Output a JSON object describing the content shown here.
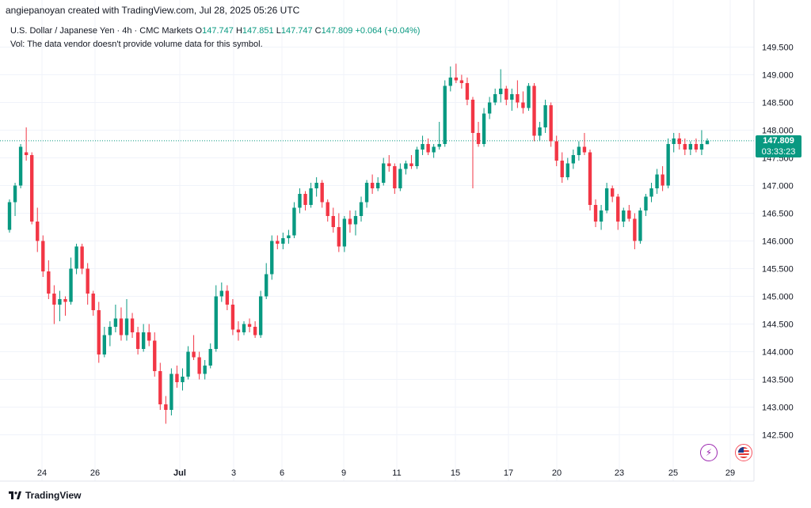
{
  "header": {
    "attribution": "angiepanoyan created with TradingView.com, Jul 28, 2025 05:26 UTC",
    "symbol_title": "U.S. Dollar / Japanese Yen · 4h · CMC Markets",
    "ohlc": {
      "open_label": "O",
      "open": "147.747",
      "high_label": "H",
      "high": "147.851",
      "low_label": "L",
      "low": "147.747",
      "close_label": "C",
      "close": "147.809",
      "change": "+0.064 (+0.04%)"
    },
    "volume_note": "Vol: The data vendor doesn't provide volume data for this symbol."
  },
  "price_tag": {
    "price": "147.809",
    "countdown": "03:33:23"
  },
  "footer": {
    "brand": "TradingView"
  },
  "events": {
    "bolt_icon": "lightning-icon",
    "flag_icon": "us-flag-icon"
  },
  "colors": {
    "up": "#089981",
    "down": "#f23645",
    "accent": "#089981"
  },
  "chart_data": {
    "type": "candlestick",
    "timeframe": "4h",
    "y_axis": {
      "ticks": [
        142.5,
        143.0,
        143.5,
        144.0,
        144.5,
        145.0,
        145.5,
        146.0,
        146.5,
        147.0,
        147.5,
        148.0,
        148.5,
        149.0,
        149.5
      ]
    },
    "x_axis": {
      "ticks": [
        "24",
        "26",
        "Jul",
        "3",
        "6",
        "9",
        "11",
        "15",
        "17",
        "20",
        "23",
        "25",
        "29"
      ]
    },
    "last_price": 147.809,
    "candles": [
      {
        "o": 146.2,
        "h": 146.75,
        "l": 146.15,
        "c": 146.7
      },
      {
        "o": 146.7,
        "h": 147.05,
        "l": 146.45,
        "c": 147.0
      },
      {
        "o": 147.0,
        "h": 147.75,
        "l": 146.95,
        "c": 147.7
      },
      {
        "o": 147.6,
        "h": 148.05,
        "l": 147.45,
        "c": 147.55
      },
      {
        "o": 147.55,
        "h": 147.6,
        "l": 146.3,
        "c": 146.35
      },
      {
        "o": 146.35,
        "h": 146.6,
        "l": 145.8,
        "c": 146.0
      },
      {
        "o": 146.0,
        "h": 146.1,
        "l": 145.35,
        "c": 145.45
      },
      {
        "o": 145.45,
        "h": 145.65,
        "l": 144.95,
        "c": 145.05
      },
      {
        "o": 145.05,
        "h": 145.2,
        "l": 144.5,
        "c": 144.85
      },
      {
        "o": 144.85,
        "h": 145.1,
        "l": 144.55,
        "c": 144.95
      },
      {
        "o": 144.95,
        "h": 145.0,
        "l": 144.65,
        "c": 144.9
      },
      {
        "o": 144.9,
        "h": 145.7,
        "l": 144.85,
        "c": 145.5
      },
      {
        "o": 145.5,
        "h": 145.95,
        "l": 145.4,
        "c": 145.9
      },
      {
        "o": 145.9,
        "h": 145.95,
        "l": 145.4,
        "c": 145.5
      },
      {
        "o": 145.5,
        "h": 145.6,
        "l": 144.85,
        "c": 145.05
      },
      {
        "o": 145.05,
        "h": 145.1,
        "l": 144.65,
        "c": 144.75
      },
      {
        "o": 144.75,
        "h": 144.9,
        "l": 143.8,
        "c": 143.95
      },
      {
        "o": 143.95,
        "h": 144.45,
        "l": 143.9,
        "c": 144.3
      },
      {
        "o": 144.3,
        "h": 144.55,
        "l": 144.1,
        "c": 144.45
      },
      {
        "o": 144.45,
        "h": 144.85,
        "l": 144.35,
        "c": 144.6
      },
      {
        "o": 144.6,
        "h": 144.8,
        "l": 144.2,
        "c": 144.3
      },
      {
        "o": 144.3,
        "h": 144.95,
        "l": 144.2,
        "c": 144.6
      },
      {
        "o": 144.6,
        "h": 144.7,
        "l": 144.25,
        "c": 144.35
      },
      {
        "o": 144.35,
        "h": 144.45,
        "l": 143.95,
        "c": 144.05
      },
      {
        "o": 144.05,
        "h": 144.5,
        "l": 144.0,
        "c": 144.35
      },
      {
        "o": 144.35,
        "h": 144.5,
        "l": 144.1,
        "c": 144.2
      },
      {
        "o": 144.2,
        "h": 144.35,
        "l": 143.55,
        "c": 143.65
      },
      {
        "o": 143.65,
        "h": 143.8,
        "l": 142.95,
        "c": 143.05
      },
      {
        "o": 143.05,
        "h": 143.2,
        "l": 142.7,
        "c": 142.95
      },
      {
        "o": 142.95,
        "h": 143.7,
        "l": 142.85,
        "c": 143.6
      },
      {
        "o": 143.6,
        "h": 143.75,
        "l": 143.35,
        "c": 143.45
      },
      {
        "o": 143.45,
        "h": 143.7,
        "l": 143.3,
        "c": 143.55
      },
      {
        "o": 143.55,
        "h": 144.1,
        "l": 143.5,
        "c": 144.0
      },
      {
        "o": 144.0,
        "h": 144.3,
        "l": 143.85,
        "c": 143.9
      },
      {
        "o": 143.9,
        "h": 144.0,
        "l": 143.5,
        "c": 143.6
      },
      {
        "o": 143.6,
        "h": 143.85,
        "l": 143.5,
        "c": 143.75
      },
      {
        "o": 143.75,
        "h": 144.15,
        "l": 143.7,
        "c": 144.05
      },
      {
        "o": 144.05,
        "h": 145.2,
        "l": 144.0,
        "c": 145.0
      },
      {
        "o": 145.0,
        "h": 145.25,
        "l": 144.9,
        "c": 145.1
      },
      {
        "o": 145.1,
        "h": 145.2,
        "l": 144.75,
        "c": 144.85
      },
      {
        "o": 144.85,
        "h": 144.95,
        "l": 144.3,
        "c": 144.4
      },
      {
        "o": 144.4,
        "h": 144.55,
        "l": 144.2,
        "c": 144.35
      },
      {
        "o": 144.35,
        "h": 144.55,
        "l": 144.3,
        "c": 144.5
      },
      {
        "o": 144.5,
        "h": 144.6,
        "l": 144.35,
        "c": 144.45
      },
      {
        "o": 144.45,
        "h": 144.55,
        "l": 144.25,
        "c": 144.3
      },
      {
        "o": 144.3,
        "h": 145.1,
        "l": 144.25,
        "c": 145.0
      },
      {
        "o": 145.0,
        "h": 145.6,
        "l": 144.95,
        "c": 145.4
      },
      {
        "o": 145.4,
        "h": 146.1,
        "l": 145.3,
        "c": 146.0
      },
      {
        "o": 146.0,
        "h": 146.1,
        "l": 145.85,
        "c": 145.95
      },
      {
        "o": 145.95,
        "h": 146.15,
        "l": 145.85,
        "c": 146.05
      },
      {
        "o": 146.05,
        "h": 146.2,
        "l": 145.95,
        "c": 146.1
      },
      {
        "o": 146.1,
        "h": 146.7,
        "l": 146.05,
        "c": 146.6
      },
      {
        "o": 146.6,
        "h": 146.95,
        "l": 146.5,
        "c": 146.85
      },
      {
        "o": 146.85,
        "h": 146.9,
        "l": 146.55,
        "c": 146.65
      },
      {
        "o": 146.65,
        "h": 147.05,
        "l": 146.6,
        "c": 146.95
      },
      {
        "o": 146.95,
        "h": 147.15,
        "l": 146.8,
        "c": 147.05
      },
      {
        "o": 147.05,
        "h": 147.1,
        "l": 146.6,
        "c": 146.7
      },
      {
        "o": 146.7,
        "h": 146.75,
        "l": 146.35,
        "c": 146.45
      },
      {
        "o": 146.45,
        "h": 146.6,
        "l": 146.15,
        "c": 146.25
      },
      {
        "o": 146.25,
        "h": 146.5,
        "l": 145.8,
        "c": 145.9
      },
      {
        "o": 145.9,
        "h": 146.45,
        "l": 145.8,
        "c": 146.4
      },
      {
        "o": 146.4,
        "h": 146.55,
        "l": 146.15,
        "c": 146.3
      },
      {
        "o": 146.3,
        "h": 146.55,
        "l": 146.1,
        "c": 146.45
      },
      {
        "o": 146.45,
        "h": 146.8,
        "l": 146.35,
        "c": 146.7
      },
      {
        "o": 146.7,
        "h": 147.1,
        "l": 146.6,
        "c": 147.05
      },
      {
        "o": 147.05,
        "h": 147.2,
        "l": 146.85,
        "c": 146.95
      },
      {
        "o": 146.95,
        "h": 147.15,
        "l": 146.9,
        "c": 147.05
      },
      {
        "o": 147.05,
        "h": 147.5,
        "l": 147.0,
        "c": 147.4
      },
      {
        "o": 147.4,
        "h": 147.55,
        "l": 147.25,
        "c": 147.35
      },
      {
        "o": 147.35,
        "h": 147.4,
        "l": 146.85,
        "c": 146.95
      },
      {
        "o": 146.95,
        "h": 147.4,
        "l": 146.9,
        "c": 147.3
      },
      {
        "o": 147.3,
        "h": 147.45,
        "l": 147.2,
        "c": 147.4
      },
      {
        "o": 147.4,
        "h": 147.55,
        "l": 147.3,
        "c": 147.35
      },
      {
        "o": 147.35,
        "h": 147.7,
        "l": 147.3,
        "c": 147.65
      },
      {
        "o": 147.65,
        "h": 147.9,
        "l": 147.55,
        "c": 147.75
      },
      {
        "o": 147.75,
        "h": 147.85,
        "l": 147.55,
        "c": 147.6
      },
      {
        "o": 147.6,
        "h": 147.75,
        "l": 147.5,
        "c": 147.7
      },
      {
        "o": 147.7,
        "h": 148.15,
        "l": 147.65,
        "c": 147.75
      },
      {
        "o": 147.75,
        "h": 148.9,
        "l": 147.7,
        "c": 148.8
      },
      {
        "o": 148.8,
        "h": 149.15,
        "l": 148.7,
        "c": 148.95
      },
      {
        "o": 148.95,
        "h": 149.2,
        "l": 148.85,
        "c": 148.9
      },
      {
        "o": 148.9,
        "h": 149.0,
        "l": 148.75,
        "c": 148.85
      },
      {
        "o": 148.85,
        "h": 148.95,
        "l": 148.45,
        "c": 148.55
      },
      {
        "o": 148.55,
        "h": 148.6,
        "l": 146.95,
        "c": 147.95
      },
      {
        "o": 147.95,
        "h": 148.15,
        "l": 147.7,
        "c": 147.75
      },
      {
        "o": 147.75,
        "h": 148.4,
        "l": 147.7,
        "c": 148.3
      },
      {
        "o": 148.3,
        "h": 148.6,
        "l": 148.2,
        "c": 148.5
      },
      {
        "o": 148.5,
        "h": 148.75,
        "l": 148.45,
        "c": 148.65
      },
      {
        "o": 148.65,
        "h": 149.1,
        "l": 148.5,
        "c": 148.75
      },
      {
        "o": 148.75,
        "h": 148.8,
        "l": 148.45,
        "c": 148.55
      },
      {
        "o": 148.55,
        "h": 148.75,
        "l": 148.35,
        "c": 148.65
      },
      {
        "o": 148.65,
        "h": 148.9,
        "l": 148.4,
        "c": 148.5
      },
      {
        "o": 148.5,
        "h": 148.7,
        "l": 148.3,
        "c": 148.4
      },
      {
        "o": 148.4,
        "h": 148.85,
        "l": 148.35,
        "c": 148.8
      },
      {
        "o": 148.8,
        "h": 148.85,
        "l": 147.8,
        "c": 147.9
      },
      {
        "o": 147.9,
        "h": 148.15,
        "l": 147.8,
        "c": 148.05
      },
      {
        "o": 148.05,
        "h": 148.55,
        "l": 147.95,
        "c": 148.45
      },
      {
        "o": 148.45,
        "h": 148.5,
        "l": 147.7,
        "c": 147.8
      },
      {
        "o": 147.8,
        "h": 147.9,
        "l": 147.35,
        "c": 147.45
      },
      {
        "o": 147.45,
        "h": 147.6,
        "l": 147.05,
        "c": 147.15
      },
      {
        "o": 147.15,
        "h": 147.5,
        "l": 147.1,
        "c": 147.4
      },
      {
        "o": 147.4,
        "h": 147.65,
        "l": 147.3,
        "c": 147.55
      },
      {
        "o": 147.55,
        "h": 147.8,
        "l": 147.45,
        "c": 147.7
      },
      {
        "o": 147.7,
        "h": 147.95,
        "l": 147.55,
        "c": 147.6
      },
      {
        "o": 147.6,
        "h": 147.65,
        "l": 146.55,
        "c": 146.65
      },
      {
        "o": 146.65,
        "h": 146.75,
        "l": 146.25,
        "c": 146.35
      },
      {
        "o": 146.35,
        "h": 146.65,
        "l": 146.2,
        "c": 146.55
      },
      {
        "o": 146.55,
        "h": 147.05,
        "l": 146.5,
        "c": 146.95
      },
      {
        "o": 146.95,
        "h": 147.0,
        "l": 146.7,
        "c": 146.8
      },
      {
        "o": 146.8,
        "h": 146.85,
        "l": 146.2,
        "c": 146.35
      },
      {
        "o": 146.35,
        "h": 146.6,
        "l": 146.25,
        "c": 146.55
      },
      {
        "o": 146.55,
        "h": 146.65,
        "l": 146.35,
        "c": 146.4
      },
      {
        "o": 146.4,
        "h": 146.5,
        "l": 145.85,
        "c": 146.0
      },
      {
        "o": 146.0,
        "h": 146.6,
        "l": 145.95,
        "c": 146.55
      },
      {
        "o": 146.55,
        "h": 146.85,
        "l": 146.45,
        "c": 146.8
      },
      {
        "o": 146.8,
        "h": 147.05,
        "l": 146.7,
        "c": 146.95
      },
      {
        "o": 146.95,
        "h": 147.3,
        "l": 146.85,
        "c": 147.2
      },
      {
        "o": 147.2,
        "h": 147.35,
        "l": 146.9,
        "c": 147.0
      },
      {
        "o": 147.0,
        "h": 147.85,
        "l": 146.95,
        "c": 147.75
      },
      {
        "o": 147.75,
        "h": 147.95,
        "l": 147.6,
        "c": 147.85
      },
      {
        "o": 147.85,
        "h": 147.95,
        "l": 147.65,
        "c": 147.75
      },
      {
        "o": 147.75,
        "h": 147.85,
        "l": 147.55,
        "c": 147.65
      },
      {
        "o": 147.65,
        "h": 147.8,
        "l": 147.55,
        "c": 147.75
      },
      {
        "o": 147.75,
        "h": 147.85,
        "l": 147.6,
        "c": 147.65
      },
      {
        "o": 147.65,
        "h": 148.0,
        "l": 147.55,
        "c": 147.75
      },
      {
        "o": 147.747,
        "h": 147.851,
        "l": 147.747,
        "c": 147.809
      }
    ]
  }
}
